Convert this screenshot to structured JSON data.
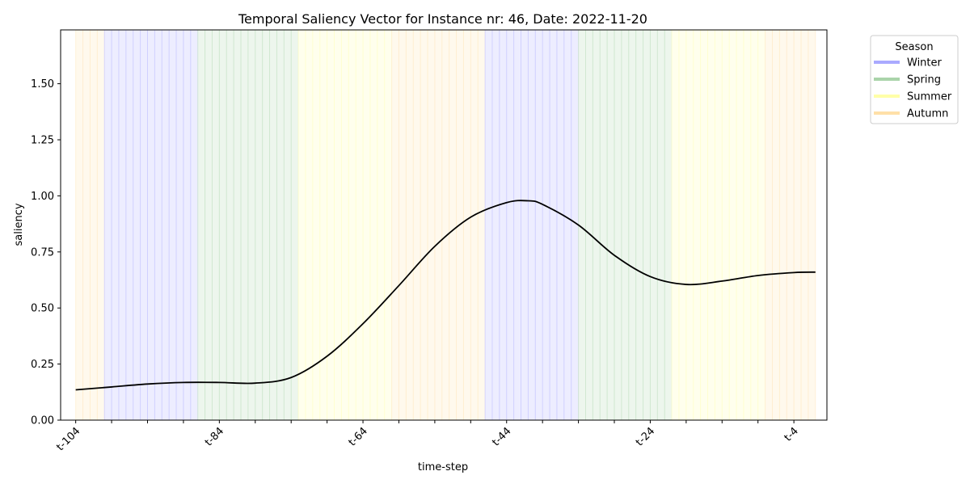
{
  "chart_data": {
    "type": "line",
    "title": "Temporal Saliency Vector for Instance nr: 46, Date: 2022-11-20",
    "xlabel": "time-step",
    "ylabel": "saliency",
    "x_range": [
      -104,
      -1
    ],
    "ylim": [
      0.0,
      1.74
    ],
    "y_ticks": [
      "0.00",
      "0.25",
      "0.50",
      "0.75",
      "1.00",
      "1.25",
      "1.50"
    ],
    "x_tick_labels": [
      {
        "x": -104,
        "label": "t-104"
      },
      {
        "x": -84,
        "label": "t-84"
      },
      {
        "x": -64,
        "label": "t-64"
      },
      {
        "x": -44,
        "label": "t-44"
      },
      {
        "x": -24,
        "label": "t-24"
      },
      {
        "x": -4,
        "label": "t-4"
      }
    ],
    "x_minor_ticks": [
      -104,
      -99,
      -94,
      -89,
      -84,
      -79,
      -74,
      -69,
      -64,
      -59,
      -54,
      -49,
      -44,
      -39,
      -34,
      -29,
      -24,
      -19,
      -14,
      -9,
      -4
    ],
    "series": [
      {
        "color": "#000000",
        "points": [
          [
            -104,
            0.135
          ],
          [
            -99,
            0.148
          ],
          [
            -94,
            0.161
          ],
          [
            -89,
            0.168
          ],
          [
            -84,
            0.168
          ],
          [
            -79,
            0.165
          ],
          [
            -74,
            0.19
          ],
          [
            -69,
            0.285
          ],
          [
            -64,
            0.43
          ],
          [
            -59,
            0.6
          ],
          [
            -54,
            0.775
          ],
          [
            -49,
            0.905
          ],
          [
            -44,
            0.97
          ],
          [
            -41,
            0.978
          ],
          [
            -39,
            0.962
          ],
          [
            -34,
            0.87
          ],
          [
            -29,
            0.735
          ],
          [
            -24,
            0.64
          ],
          [
            -19,
            0.605
          ],
          [
            -14,
            0.62
          ],
          [
            -9,
            0.645
          ],
          [
            -4,
            0.658
          ],
          [
            -1,
            0.66
          ]
        ]
      }
    ],
    "season_bands": [
      {
        "season": "Autumn",
        "start": -104,
        "end": -100
      },
      {
        "season": "Winter",
        "start": -100,
        "end": -87
      },
      {
        "season": "Spring",
        "start": -87,
        "end": -73
      },
      {
        "season": "Summer",
        "start": -73,
        "end": -60
      },
      {
        "season": "Autumn",
        "start": -60,
        "end": -47
      },
      {
        "season": "Winter",
        "start": -47,
        "end": -34
      },
      {
        "season": "Spring",
        "start": -34,
        "end": -21
      },
      {
        "season": "Summer",
        "start": -21,
        "end": -8
      },
      {
        "season": "Autumn",
        "start": -8,
        "end": -1
      }
    ],
    "season_colors": {
      "Winter": "#0000ff",
      "Spring": "#008000",
      "Summer": "#ffff00",
      "Autumn": "#ffa500"
    },
    "legend": {
      "title": "Season",
      "placement": "outside-right",
      "entries": [
        {
          "label": "Winter",
          "color": "#aaaaff"
        },
        {
          "label": "Spring",
          "color": "#aad4aa"
        },
        {
          "label": "Summer",
          "color": "#ffffa8"
        },
        {
          "label": "Autumn",
          "color": "#ffe0a8"
        }
      ]
    },
    "grid": false
  }
}
